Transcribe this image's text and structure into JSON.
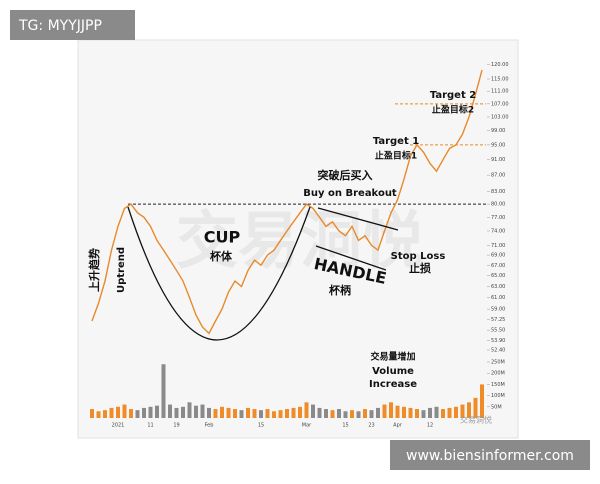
{
  "badge": "TG: MYYJJPP",
  "watermark": "交易洞悦",
  "source": "www.biensinformer.com",
  "chart_data": {
    "type": "line",
    "log": true,
    "color": "#e8892b",
    "categories": [
      null,
      null,
      null,
      null,
      "2021",
      null,
      null,
      null,
      null,
      "11",
      null,
      null,
      null,
      "19",
      null,
      null,
      null,
      null,
      "Feb",
      null,
      null,
      null,
      null,
      null,
      null,
      null,
      "15",
      null,
      null,
      null,
      null,
      null,
      null,
      "Mar",
      null,
      null,
      null,
      null,
      null,
      "15",
      null,
      null,
      null,
      "23",
      null,
      null,
      null,
      "Apr",
      null,
      null,
      null,
      null,
      "12",
      null,
      null,
      null,
      null,
      null,
      null,
      null,
      null
    ],
    "values": [
      57,
      60,
      64,
      70,
      75,
      79,
      80,
      78,
      77,
      75,
      72,
      70,
      68,
      66,
      64,
      61,
      58,
      56,
      55,
      57,
      59,
      62,
      64,
      63,
      66,
      68,
      67,
      69,
      70,
      72,
      74,
      76,
      78,
      80,
      79,
      77,
      75,
      76,
      74,
      73,
      75,
      72,
      73,
      71,
      70,
      74,
      78,
      81,
      86,
      92,
      95,
      93,
      90,
      88,
      91,
      94,
      95,
      98,
      103,
      110,
      118
    ],
    "ylim": [
      52.4,
      124
    ],
    "yticks": [
      {
        "value": 120,
        "label": "120.00"
      },
      {
        "value": 115,
        "label": "115.00"
      },
      {
        "value": 111,
        "label": "111.00"
      },
      {
        "value": 107,
        "label": "107.00"
      },
      {
        "value": 103,
        "label": "103.00"
      },
      {
        "value": 99,
        "label": "99.00"
      },
      {
        "value": 95,
        "label": "95.00"
      },
      {
        "value": 91,
        "label": "91.00"
      },
      {
        "value": 87,
        "label": "87.00"
      },
      {
        "value": 83,
        "label": "83.00"
      },
      {
        "value": 80,
        "label": "80.00"
      },
      {
        "value": 77,
        "label": "77.00"
      },
      {
        "value": 74,
        "label": "74.00"
      },
      {
        "value": 71,
        "label": "71.00"
      },
      {
        "value": 69,
        "label": "69.00"
      },
      {
        "value": 67,
        "label": "67.00"
      },
      {
        "value": 65,
        "label": "65.00"
      },
      {
        "value": 63,
        "label": "63.00"
      },
      {
        "value": 61,
        "label": "61.00"
      },
      {
        "value": 59,
        "label": "59.00"
      },
      {
        "value": 57.25,
        "label": "57.25"
      },
      {
        "value": 55.5,
        "label": "55.50"
      },
      {
        "value": 53.9,
        "label": "53.90"
      },
      {
        "value": 52.4,
        "label": "52.40"
      }
    ],
    "volume": {
      "values": [
        40,
        30,
        35,
        45,
        50,
        60,
        40,
        35,
        45,
        50,
        55,
        240,
        60,
        45,
        50,
        70,
        55,
        60,
        45,
        40,
        50,
        45,
        40,
        35,
        45,
        40,
        35,
        40,
        30,
        35,
        40,
        45,
        50,
        70,
        60,
        45,
        40,
        35,
        40,
        30,
        35,
        30,
        40,
        35,
        45,
        60,
        70,
        55,
        50,
        45,
        40,
        35,
        45,
        50,
        40,
        45,
        50,
        60,
        70,
        90,
        150
      ],
      "ylim": [
        0,
        250
      ],
      "yticks": [
        {
          "value": 250,
          "label": "250M"
        },
        {
          "value": 200,
          "label": "200M"
        },
        {
          "value": 150,
          "label": "150M"
        },
        {
          "value": 100,
          "label": "100M"
        },
        {
          "value": 50,
          "label": "50M"
        }
      ],
      "colors": [
        "#f08c28",
        "#8a8a8a"
      ]
    },
    "levels": [
      {
        "value": 80,
        "color": "#222222"
      },
      {
        "value": 95,
        "color": "#e8892b"
      },
      {
        "value": 107,
        "color": "#e8892b"
      }
    ],
    "annotations": [
      "上升趋势",
      "Uptrend",
      "CUP",
      "杯体",
      "HANDLE",
      "杯柄",
      "Stop Loss",
      "止损",
      "突破后买入",
      "Buy on Breakout",
      "Target 1",
      "止盈目标1",
      "Target 2",
      "止盈目标2",
      "交易量增加",
      "Volume",
      "Increase"
    ]
  }
}
